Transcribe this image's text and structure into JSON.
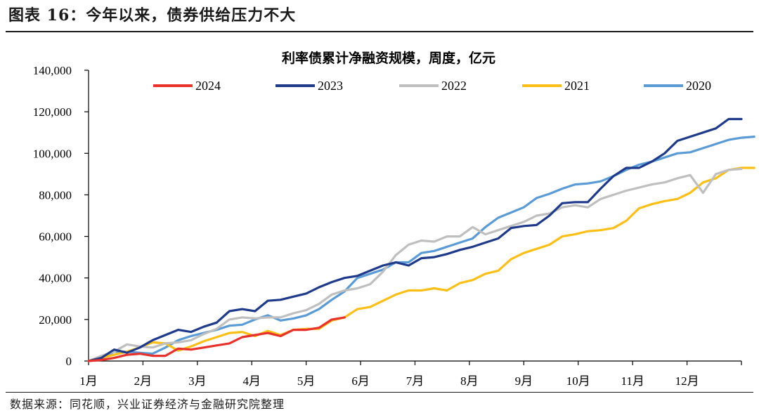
{
  "header": {
    "figure_title": "图表 16：今年以来，债券供给压力不大",
    "source": "数据来源：同花顺，兴业证券经济与金融研究院整理"
  },
  "chart_data": {
    "type": "line",
    "title": "利率债累计净融资规模，周度，亿元",
    "xlabel": "",
    "ylabel": "",
    "ylim": [
      0,
      140000
    ],
    "yticks": [
      0,
      20000,
      40000,
      60000,
      80000,
      100000,
      120000,
      140000
    ],
    "ytick_labels": [
      "0",
      "20,000",
      "40,000",
      "60,000",
      "80,000",
      "100,000",
      "120,000",
      "140,000"
    ],
    "xlim": [
      1,
      52
    ],
    "x_tick_labels": [
      "1月",
      "2月",
      "3月",
      "4月",
      "5月",
      "6月",
      "7月",
      "8月",
      "9月",
      "10月",
      "11月",
      "12月"
    ],
    "grid": false,
    "legend_position": "top",
    "colors": {
      "2024": "#e8312a",
      "2023": "#1f3a8a",
      "2022": "#bfbfbf",
      "2021": "#fbbf16",
      "2020": "#5b9bd5"
    },
    "series": [
      {
        "name": "2024",
        "values": [
          0,
          500,
          1500,
          3000,
          3500,
          2500,
          2500,
          6000,
          5500,
          6500,
          7500,
          8500,
          11500,
          12500,
          13500,
          12000,
          15000,
          15000,
          16000,
          20000,
          21000
        ]
      },
      {
        "name": "2023",
        "values": [
          0,
          1500,
          5500,
          4000,
          6500,
          10000,
          12500,
          15000,
          14000,
          16500,
          18500,
          24000,
          25000,
          24000,
          29000,
          29500,
          31000,
          32500,
          35500,
          38000,
          40000,
          41000,
          43500,
          46000,
          47500,
          46000,
          49500,
          50000,
          51500,
          53500,
          55000,
          57000,
          59000,
          64000,
          65000,
          65500,
          70000,
          76000,
          76500,
          76500,
          83000,
          89000,
          93000,
          93000,
          96000,
          100000,
          106000,
          108000,
          110000,
          112000,
          116500,
          116500
        ]
      },
      {
        "name": "2022",
        "values": [
          0,
          2500,
          4500,
          8000,
          7000,
          6500,
          8500,
          9000,
          10000,
          13000,
          15500,
          20000,
          21000,
          20500,
          21000,
          21000,
          23000,
          24500,
          27500,
          32000,
          34000,
          35000,
          37000,
          43000,
          51000,
          56000,
          58000,
          57500,
          60000,
          60000,
          64500,
          61000,
          63000,
          65000,
          67000,
          70000,
          71000,
          74000,
          75000,
          74000,
          78000,
          80000,
          82000,
          83500,
          85000,
          86000,
          88000,
          89500,
          81000,
          90000,
          92000,
          92500
        ]
      },
      {
        "name": "2021",
        "values": [
          0,
          1500,
          3000,
          4500,
          6500,
          9000,
          8500,
          5000,
          7000,
          9500,
          11500,
          13500,
          14000,
          12000,
          14500,
          12500,
          15000,
          15500,
          15500,
          19500,
          21000,
          25000,
          26000,
          29000,
          32000,
          34000,
          34000,
          35000,
          34000,
          37500,
          39000,
          42000,
          43500,
          49000,
          52000,
          54000,
          56000,
          60000,
          61000,
          62500,
          63000,
          64000,
          67500,
          73500,
          75500,
          77000,
          78000,
          81000,
          86000,
          88000,
          92000,
          93000,
          93000
        ]
      },
      {
        "name": "2020",
        "values": [
          0,
          1000,
          4500,
          4500,
          4000,
          3500,
          6500,
          10000,
          12000,
          13500,
          15000,
          17000,
          17500,
          20000,
          22000,
          19500,
          20500,
          22000,
          25000,
          29500,
          33500,
          40000,
          42000,
          44000,
          47500,
          47500,
          52000,
          53000,
          55000,
          57000,
          59000,
          64500,
          69000,
          71500,
          74000,
          78500,
          80500,
          83000,
          85000,
          85500,
          86500,
          89000,
          92000,
          94500,
          96000,
          98000,
          100000,
          100500,
          102500,
          104500,
          106500,
          107500,
          108000
        ]
      }
    ]
  }
}
